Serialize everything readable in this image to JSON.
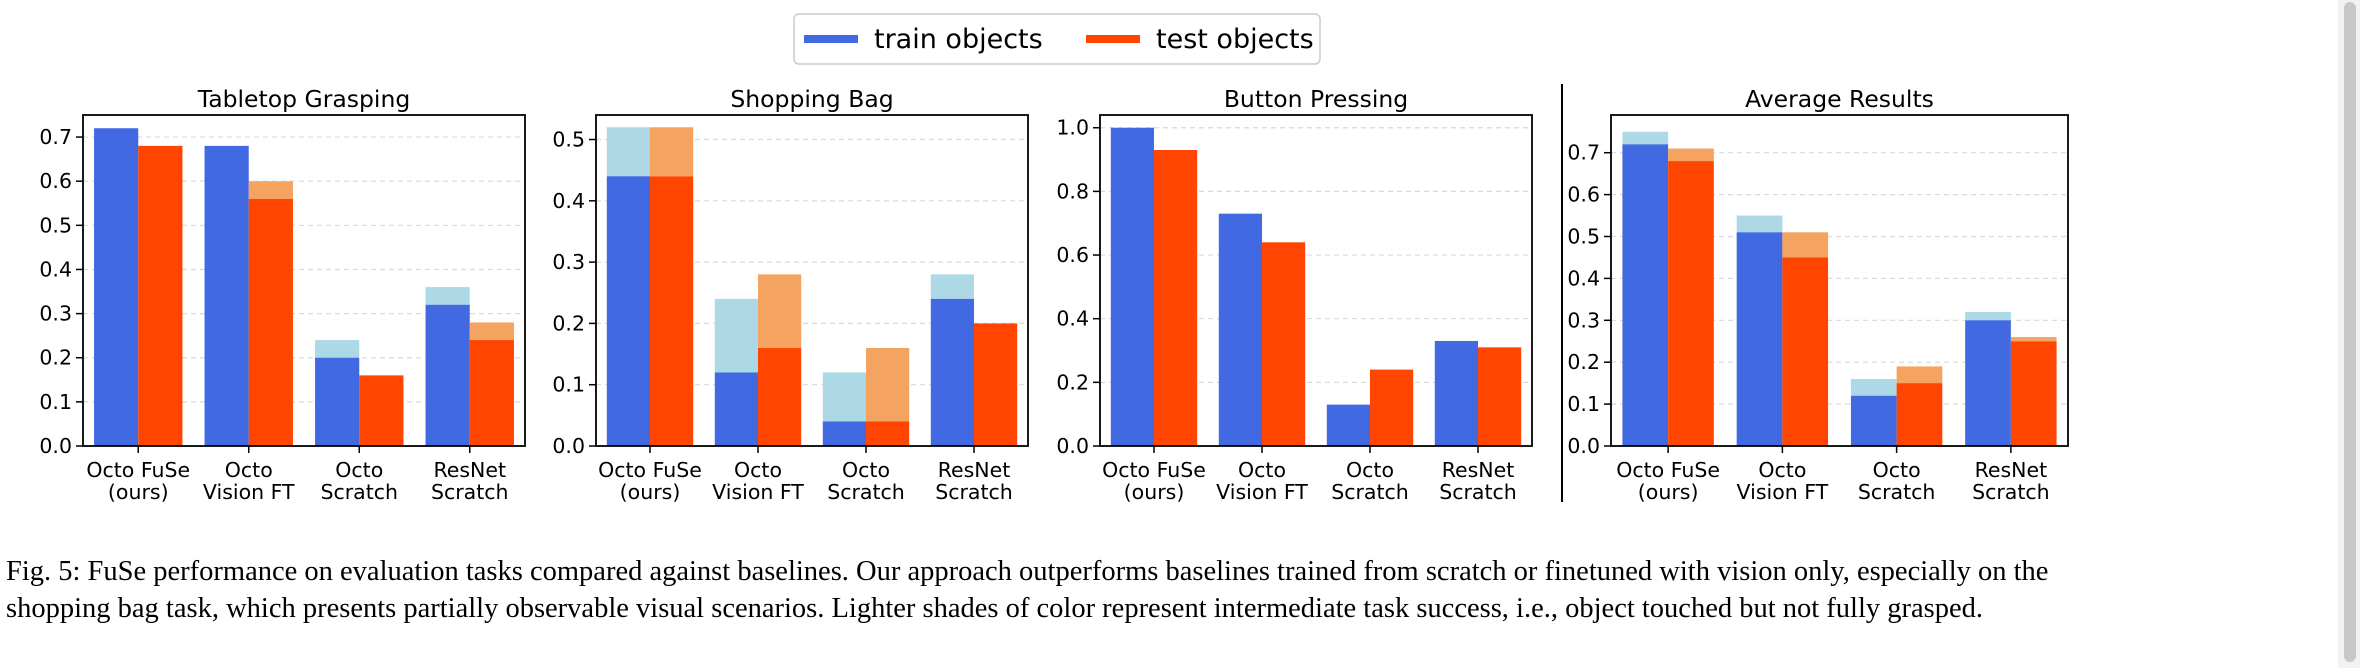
{
  "legend": {
    "items": [
      {
        "label": "train objects",
        "color": "#4169e1"
      },
      {
        "label": "test objects",
        "color": "#ff4500"
      }
    ]
  },
  "colors": {
    "train": "#4169e1",
    "train_light": "#add8e6",
    "test": "#ff4500",
    "test_light": "#f4a460"
  },
  "chart_data": [
    {
      "type": "bar",
      "title": "Tabletop Grasping",
      "categories": [
        "Octo FuSe\n(ours)",
        "Octo\nVision FT",
        "Octo\nScratch",
        "ResNet\nScratch"
      ],
      "ylim": [
        0,
        0.75
      ],
      "yticks": [
        0.0,
        0.1,
        0.2,
        0.3,
        0.4,
        0.5,
        0.6,
        0.7
      ],
      "series": [
        {
          "name": "train objects",
          "values": [
            0.72,
            0.68,
            0.2,
            0.32
          ],
          "intermediate": [
            0.72,
            0.68,
            0.24,
            0.36
          ]
        },
        {
          "name": "test objects",
          "values": [
            0.68,
            0.56,
            0.16,
            0.24
          ],
          "intermediate": [
            0.68,
            0.6,
            0.16,
            0.28
          ]
        }
      ]
    },
    {
      "type": "bar",
      "title": "Shopping Bag",
      "categories": [
        "Octo FuSe\n(ours)",
        "Octo\nVision FT",
        "Octo\nScratch",
        "ResNet\nScratch"
      ],
      "ylim": [
        0,
        0.54
      ],
      "yticks": [
        0.0,
        0.1,
        0.2,
        0.3,
        0.4,
        0.5
      ],
      "series": [
        {
          "name": "train objects",
          "values": [
            0.44,
            0.12,
            0.04,
            0.24
          ],
          "intermediate": [
            0.52,
            0.24,
            0.12,
            0.28
          ]
        },
        {
          "name": "test objects",
          "values": [
            0.44,
            0.16,
            0.04,
            0.2
          ],
          "intermediate": [
            0.52,
            0.28,
            0.16,
            0.2
          ]
        }
      ]
    },
    {
      "type": "bar",
      "title": "Button Pressing",
      "categories": [
        "Octo FuSe\n(ours)",
        "Octo\nVision FT",
        "Octo\nScratch",
        "ResNet\nScratch"
      ],
      "ylim": [
        0,
        1.04
      ],
      "yticks": [
        0.0,
        0.2,
        0.4,
        0.6,
        0.8,
        1.0
      ],
      "series": [
        {
          "name": "train objects",
          "values": [
            1.0,
            0.73,
            0.13,
            0.33
          ],
          "intermediate": [
            1.0,
            0.73,
            0.13,
            0.33
          ]
        },
        {
          "name": "test objects",
          "values": [
            0.93,
            0.64,
            0.24,
            0.31
          ],
          "intermediate": [
            0.93,
            0.64,
            0.24,
            0.31
          ]
        }
      ]
    },
    {
      "type": "bar",
      "title": "Average Results",
      "categories": [
        "Octo FuSe\n(ours)",
        "Octo\nVision FT",
        "Octo\nScratch",
        "ResNet\nScratch"
      ],
      "ylim": [
        0,
        0.79
      ],
      "yticks": [
        0.0,
        0.1,
        0.2,
        0.3,
        0.4,
        0.5,
        0.6,
        0.7
      ],
      "series": [
        {
          "name": "train objects",
          "values": [
            0.72,
            0.51,
            0.12,
            0.3
          ],
          "intermediate": [
            0.75,
            0.55,
            0.16,
            0.32
          ]
        },
        {
          "name": "test objects",
          "values": [
            0.68,
            0.45,
            0.15,
            0.25
          ],
          "intermediate": [
            0.71,
            0.51,
            0.19,
            0.26
          ]
        }
      ]
    }
  ],
  "caption": "Fig. 5: FuSe performance on evaluation tasks compared against baselines. Our approach outperforms baselines trained from scratch or finetuned with vision only, especially on the shopping bag task, which presents partially observable visual scenarios. Lighter shades of color represent intermediate task success, i.e., object touched but not fully grasped."
}
